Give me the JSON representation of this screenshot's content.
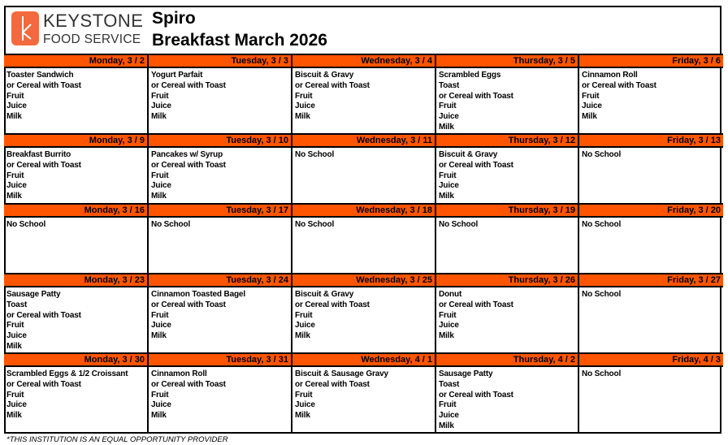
{
  "header": {
    "brand_line1": "KEYSTONE",
    "brand_line2": "FOOD SERVICE",
    "school": "Spiro",
    "title": "Breakfast March 2026",
    "accent": "#ff5500"
  },
  "weeks": [
    {
      "days": [
        {
          "label": "Monday, 3 / 2",
          "items": [
            "Toaster Sandwich",
            "or Cereal with Toast",
            "Fruit",
            "Juice",
            "Milk"
          ]
        },
        {
          "label": "Tuesday, 3 / 3",
          "items": [
            "Yogurt Parfait",
            "or Cereal with Toast",
            "Fruit",
            "Juice",
            "Milk"
          ]
        },
        {
          "label": "Wednesday, 3 / 4",
          "items": [
            "Biscuit & Gravy",
            "or Cereal with Toast",
            "Fruit",
            "Juice",
            "Milk"
          ]
        },
        {
          "label": "Thursday, 3 / 5",
          "items": [
            "Scrambled Eggs",
            "Toast",
            "or Cereal with Toast",
            "Fruit",
            "Juice",
            "Milk"
          ]
        },
        {
          "label": "Friday, 3 / 6",
          "items": [
            "Cinnamon Roll",
            "or Cereal with Toast",
            "Fruit",
            "Juice",
            "Milk"
          ]
        }
      ]
    },
    {
      "days": [
        {
          "label": "Monday, 3 / 9",
          "items": [
            "Breakfast Burrito",
            "or Cereal with Toast",
            "Fruit",
            "Juice",
            "Milk"
          ]
        },
        {
          "label": "Tuesday, 3 / 10",
          "items": [
            "Pancakes w/ Syrup",
            "or Cereal with Toast",
            "Fruit",
            "Juice",
            "Milk"
          ]
        },
        {
          "label": "Wednesday, 3 / 11",
          "items": [
            "No School"
          ]
        },
        {
          "label": "Thursday, 3 / 12",
          "items": [
            "Biscuit & Gravy",
            "or Cereal with Toast",
            "Fruit",
            "Juice",
            "Milk"
          ]
        },
        {
          "label": "Friday, 3 / 13",
          "items": [
            "No School"
          ]
        }
      ]
    },
    {
      "days": [
        {
          "label": "Monday, 3 / 16",
          "items": [
            "No School"
          ]
        },
        {
          "label": "Tuesday, 3 / 17",
          "items": [
            "No School"
          ]
        },
        {
          "label": "Wednesday, 3 / 18",
          "items": [
            "No School"
          ]
        },
        {
          "label": "Thursday, 3 / 19",
          "items": [
            "No School"
          ]
        },
        {
          "label": "Friday, 3 / 20",
          "items": [
            "No School"
          ]
        }
      ]
    },
    {
      "days": [
        {
          "label": "Monday, 3 / 23",
          "items": [
            "Sausage Patty",
            "Toast",
            "or Cereal with Toast",
            "Fruit",
            "Juice",
            "Milk"
          ]
        },
        {
          "label": "Tuesday, 3 / 24",
          "items": [
            "Cinnamon Toasted Bagel",
            "or Cereal with Toast",
            "Fruit",
            "Juice",
            "Milk"
          ]
        },
        {
          "label": "Wednesday, 3 / 25",
          "items": [
            "Biscuit & Gravy",
            "or Cereal with Toast",
            "Fruit",
            "Juice",
            "Milk"
          ]
        },
        {
          "label": "Thursday, 3 / 26",
          "items": [
            "Donut",
            "or Cereal with Toast",
            "Fruit",
            "Juice",
            "Milk"
          ]
        },
        {
          "label": "Friday, 3 / 27",
          "items": [
            "No School"
          ]
        }
      ]
    },
    {
      "days": [
        {
          "label": "Monday, 3 / 30",
          "items": [
            "Scrambled Eggs & 1/2 Croissant",
            "or Cereal with Toast",
            "Fruit",
            "Juice",
            "Milk"
          ]
        },
        {
          "label": "Tuesday, 3 / 31",
          "items": [
            "Cinnamon Roll",
            "or Cereal with Toast",
            "Fruit",
            "Juice",
            "Milk"
          ]
        },
        {
          "label": "Wednesday, 4 / 1",
          "items": [
            "Biscuit & Sausage Gravy",
            "or Cereal with Toast",
            "Fruit",
            "Juice",
            "Milk"
          ]
        },
        {
          "label": "Thursday, 4 / 2",
          "items": [
            "Sausage Patty",
            "Toast",
            "or Cereal with Toast",
            "Fruit",
            "Juice",
            "Milk"
          ]
        },
        {
          "label": "Friday, 4 / 3",
          "items": [
            "No School"
          ]
        }
      ]
    }
  ],
  "footer": "*THIS INSTITUTION IS AN EQUAL OPPORTUNITY PROVIDER"
}
